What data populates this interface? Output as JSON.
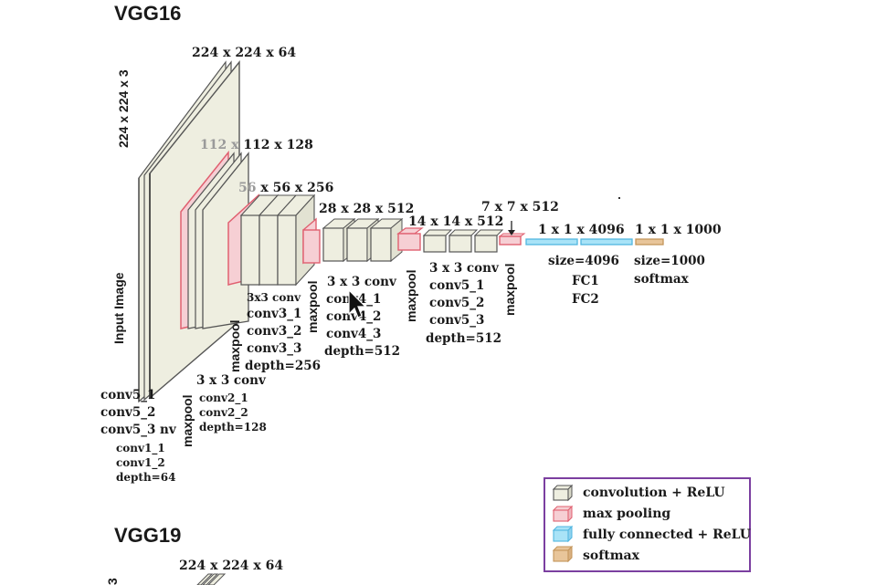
{
  "titles": {
    "vgg16": "VGG16",
    "vgg19": "VGG19"
  },
  "colors": {
    "conv_fill": "#eeeee0",
    "conv_stroke": "#555555",
    "pool_fill": "#f6cfd4",
    "pool_stroke": "#e06070",
    "fc_fill": "#a9e3f7",
    "fc_stroke": "#50b6e0",
    "softmax_fill": "#e8c59a",
    "softmax_stroke": "#c4955a",
    "legend_border": "#7b3fa0"
  },
  "input": {
    "side_label": "224 x 224 x 3",
    "vertical_label": "Input Image"
  },
  "dims": {
    "d1": "224 x 224 x 64",
    "d2_prefix": "112 x",
    "d2_rest": " 112 x 128",
    "d3_prefix": "56",
    "d3_rest": " x 56 x 256",
    "d4": "28 x 28 x 512",
    "d5": "14 x 14 x 512",
    "d6": "7 x 7 x 512",
    "d7": "1 x 1 x 4096",
    "d8": "1 x 1 x 1000"
  },
  "blocks": {
    "b1": {
      "title": "",
      "lines": [
        "conv1_1",
        "conv1_2",
        "depth=64"
      ]
    },
    "b1_left": {
      "lines": [
        "conv5_1",
        "conv5_2",
        "conv5_3"
      ],
      "suffix": "nv"
    },
    "b2": {
      "title": "3 x 3 conv",
      "lines": [
        "conv2_1",
        "conv2_2",
        "depth=128"
      ]
    },
    "b3": {
      "title": "3x3 conv",
      "lines": [
        "conv3_1",
        "conv3_2",
        "conv3_3",
        "depth=256"
      ]
    },
    "b4": {
      "title": "3 x 3 conv",
      "lines": [
        "conv4_1",
        "conv4_2",
        "conv4_3",
        "depth=512"
      ]
    },
    "b5": {
      "title": "3 x 3 conv",
      "lines": [
        "conv5_1",
        "conv5_2",
        "conv5_3",
        "depth=512"
      ]
    }
  },
  "pool_label": "maxpool",
  "fc": {
    "size": "size=4096",
    "names": [
      "FC1",
      "FC2"
    ]
  },
  "softmax": {
    "size": "size=1000",
    "name": "softmax"
  },
  "legend": {
    "items": [
      {
        "label": "convolution + ReLU",
        "kind": "conv"
      },
      {
        "label": "max pooling",
        "kind": "pool"
      },
      {
        "label": "fully connected + ReLU",
        "kind": "fc"
      },
      {
        "label": "softmax",
        "kind": "softmax"
      }
    ]
  },
  "vgg19": {
    "dim_label": "224 x 224 x 64",
    "side_label_fragment": "3"
  }
}
